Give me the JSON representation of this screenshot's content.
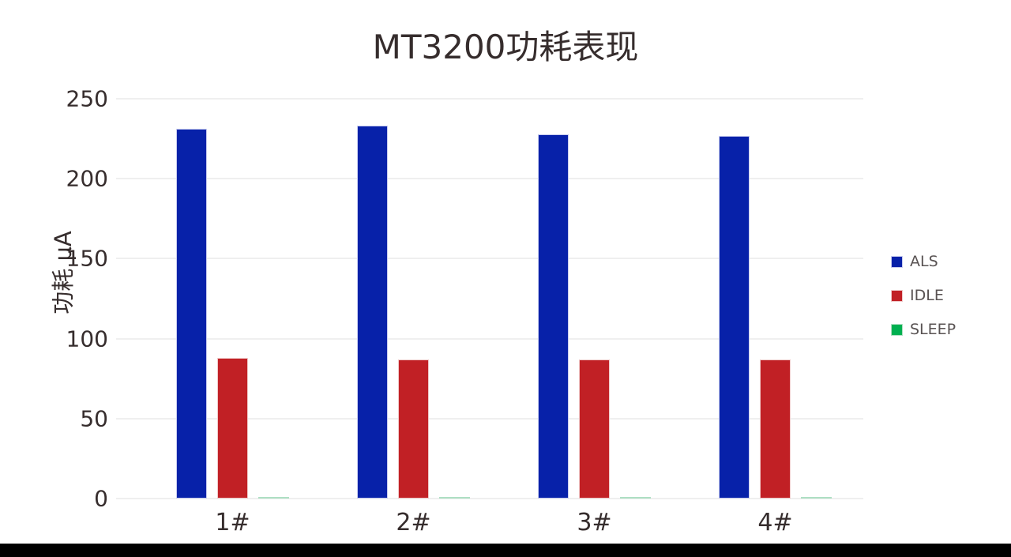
{
  "page": {
    "background": "#FFFFFF",
    "bottom_bar_color": "#000000"
  },
  "styles": {
    "title_color": "#362D2D",
    "tick_color": "#362D2D",
    "legend_text_color": "#595353",
    "gridline_color": "#EFEFEF"
  },
  "chart_data": {
    "type": "bar",
    "title": "MT3200功耗表现",
    "xlabel": "",
    "ylabel": "功耗 µA",
    "categories": [
      "1#",
      "2#",
      "3#",
      "4#"
    ],
    "series": [
      {
        "name": "ALS",
        "values": [
          231,
          233,
          228,
          227
        ],
        "color": "#0721A9",
        "border_color": "#C7CCEF"
      },
      {
        "name": "IDLE",
        "values": [
          88,
          87,
          87,
          87
        ],
        "color": "#C12025",
        "border_color": "#F0C9C9"
      },
      {
        "name": "SLEEP",
        "values": [
          1,
          1,
          1,
          1
        ],
        "color": "#00B050",
        "border_color": "#AEDFC3"
      }
    ],
    "ylim": [
      0,
      250
    ],
    "yticks": [
      0,
      50,
      100,
      150,
      200,
      250
    ],
    "grid": true,
    "legend_position": "right"
  }
}
